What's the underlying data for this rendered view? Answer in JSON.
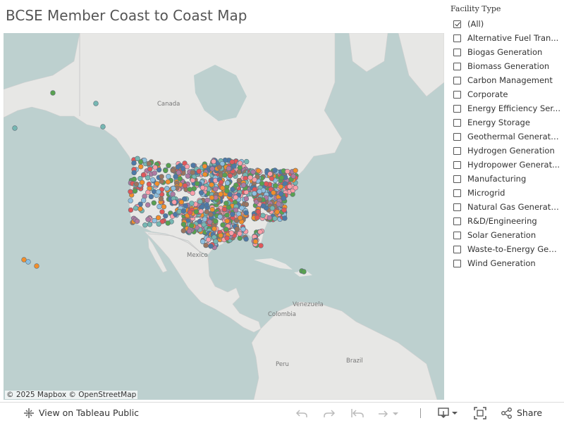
{
  "title": "BCSE Member Coast to Coast Map",
  "map": {
    "attribution": "© 2025 Mapbox  © OpenStreetMap",
    "labels": {
      "canada": "Canada",
      "mexico": "Mexico",
      "venezuela": "Venezuela",
      "colombia": "Colombia",
      "peru": "Peru",
      "brazil": "Brazil"
    },
    "marker_colors": [
      "#8ebfdf",
      "#4e79a7",
      "#f28e2b",
      "#59a14f",
      "#e15759",
      "#b07aa1",
      "#ff9da7",
      "#76b7b2",
      "#9c755f"
    ]
  },
  "filter": {
    "title": "Facility Type",
    "items": [
      {
        "label": "(All)",
        "checked": true
      },
      {
        "label": "Alternative Fuel Tran...",
        "checked": false
      },
      {
        "label": "Biogas Generation",
        "checked": false
      },
      {
        "label": "Biomass Generation",
        "checked": false
      },
      {
        "label": "Carbon Management",
        "checked": false
      },
      {
        "label": "Corporate",
        "checked": false
      },
      {
        "label": "Energy Efficiency Ser...",
        "checked": false
      },
      {
        "label": "Energy Storage",
        "checked": false
      },
      {
        "label": "Geothermal Generati...",
        "checked": false
      },
      {
        "label": "Hydrogen Generation",
        "checked": false
      },
      {
        "label": "Hydropower Generat...",
        "checked": false
      },
      {
        "label": "Manufacturing",
        "checked": false
      },
      {
        "label": "Microgrid",
        "checked": false
      },
      {
        "label": "Natural Gas Generati...",
        "checked": false
      },
      {
        "label": "R&D/Engineering",
        "checked": false
      },
      {
        "label": "Solar Generation",
        "checked": false
      },
      {
        "label": "Waste-to-Energy Gen...",
        "checked": false
      },
      {
        "label": "Wind Generation",
        "checked": false
      }
    ]
  },
  "toolbar": {
    "view_label": "View on Tableau Public",
    "share_label": "Share"
  }
}
